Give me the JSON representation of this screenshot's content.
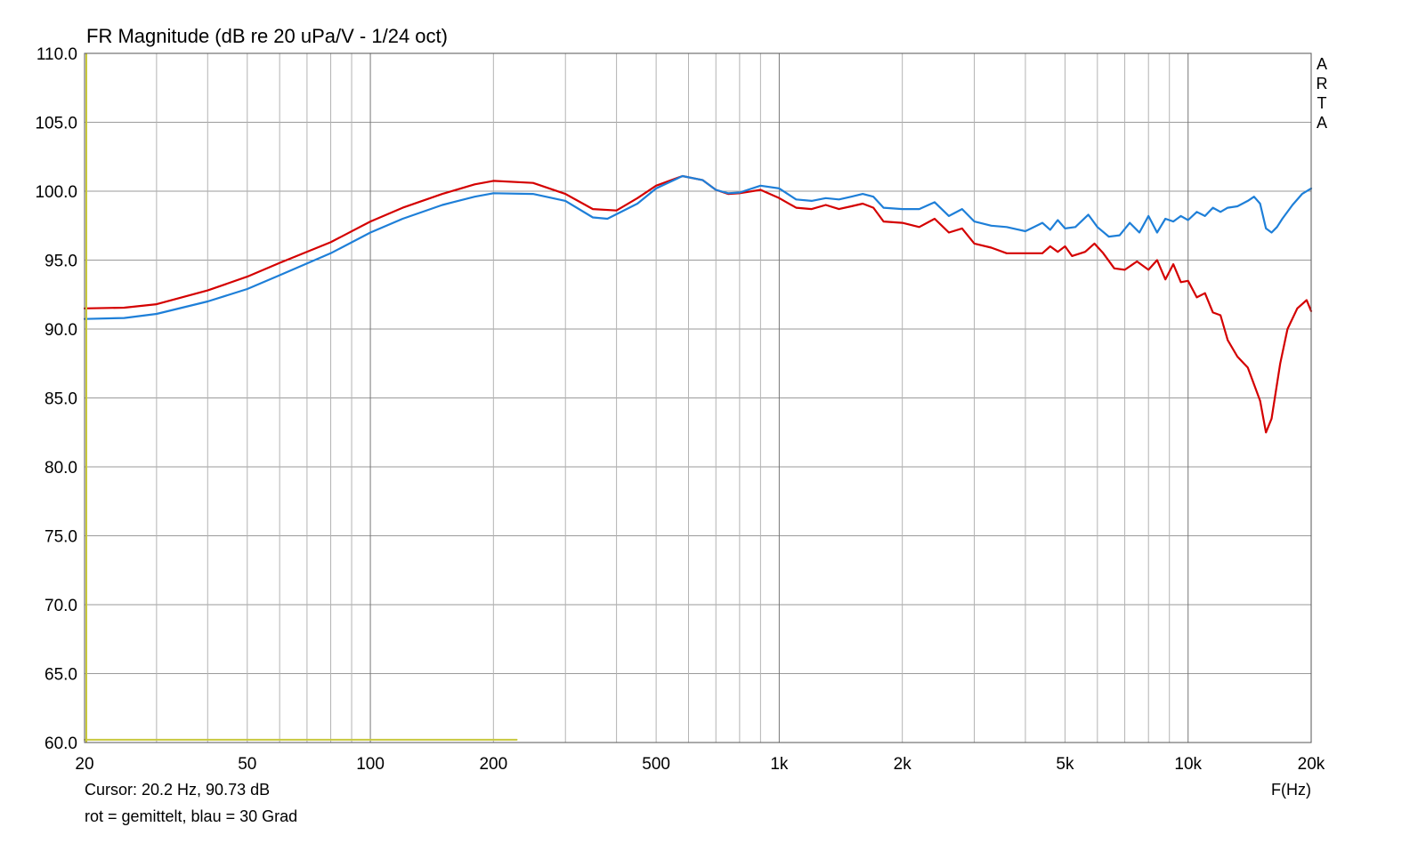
{
  "chart_data": {
    "type": "line",
    "title": "FR Magnitude (dB re 20 uPa/V - 1/24 oct)",
    "xlabel": "F(Hz)",
    "ylabel": "",
    "x_scale": "log",
    "xlim": [
      20,
      20000
    ],
    "ylim": [
      60,
      110
    ],
    "grid": true,
    "x_tick_labels": [
      "20",
      "50",
      "100",
      "200",
      "500",
      "1k",
      "2k",
      "5k",
      "10k",
      "20k"
    ],
    "x_tick_values": [
      20,
      50,
      100,
      200,
      500,
      1000,
      2000,
      5000,
      10000,
      20000
    ],
    "y_tick_labels": [
      "110.0",
      "105.0",
      "100.0",
      "95.0",
      "90.0",
      "85.0",
      "80.0",
      "75.0",
      "70.0",
      "65.0",
      "60.0"
    ],
    "y_tick_values": [
      110,
      105,
      100,
      95,
      90,
      85,
      80,
      75,
      70,
      65,
      60
    ],
    "watermark": [
      "A",
      "R",
      "T",
      "A"
    ],
    "cursor_text": "Cursor: 20.2 Hz, 90.73 dB",
    "legend_text": "rot = gemittelt, blau = 30 Grad",
    "series": [
      {
        "color": "#d40000",
        "points": [
          [
            20,
            91.5
          ],
          [
            25,
            91.55
          ],
          [
            30,
            91.8
          ],
          [
            40,
            92.8
          ],
          [
            50,
            93.8
          ],
          [
            60,
            94.8
          ],
          [
            80,
            96.3
          ],
          [
            100,
            97.8
          ],
          [
            120,
            98.8
          ],
          [
            150,
            99.8
          ],
          [
            180,
            100.5
          ],
          [
            200,
            100.75
          ],
          [
            250,
            100.6
          ],
          [
            300,
            99.8
          ],
          [
            350,
            98.7
          ],
          [
            400,
            98.6
          ],
          [
            450,
            99.5
          ],
          [
            500,
            100.4
          ],
          [
            580,
            101.1
          ],
          [
            650,
            100.8
          ],
          [
            700,
            100.1
          ],
          [
            750,
            99.8
          ],
          [
            800,
            99.85
          ],
          [
            900,
            100.1
          ],
          [
            1000,
            99.5
          ],
          [
            1100,
            98.8
          ],
          [
            1200,
            98.7
          ],
          [
            1300,
            99.0
          ],
          [
            1400,
            98.7
          ],
          [
            1500,
            98.9
          ],
          [
            1600,
            99.1
          ],
          [
            1700,
            98.8
          ],
          [
            1800,
            97.8
          ],
          [
            2000,
            97.7
          ],
          [
            2200,
            97.4
          ],
          [
            2400,
            98.0
          ],
          [
            2600,
            97.0
          ],
          [
            2800,
            97.3
          ],
          [
            3000,
            96.2
          ],
          [
            3300,
            95.9
          ],
          [
            3600,
            95.5
          ],
          [
            4000,
            95.5
          ],
          [
            4400,
            95.5
          ],
          [
            4600,
            96.0
          ],
          [
            4800,
            95.6
          ],
          [
            5000,
            96.0
          ],
          [
            5200,
            95.3
          ],
          [
            5600,
            95.6
          ],
          [
            5900,
            96.2
          ],
          [
            6200,
            95.5
          ],
          [
            6600,
            94.4
          ],
          [
            7000,
            94.3
          ],
          [
            7500,
            94.9
          ],
          [
            8000,
            94.3
          ],
          [
            8400,
            95.0
          ],
          [
            8800,
            93.6
          ],
          [
            9200,
            94.7
          ],
          [
            9600,
            93.4
          ],
          [
            10000,
            93.5
          ],
          [
            10500,
            92.3
          ],
          [
            11000,
            92.6
          ],
          [
            11500,
            91.2
          ],
          [
            12000,
            91.0
          ],
          [
            12500,
            89.2
          ],
          [
            13200,
            88.0
          ],
          [
            14000,
            87.2
          ],
          [
            15000,
            84.8
          ],
          [
            15500,
            82.5
          ],
          [
            16000,
            83.5
          ],
          [
            16800,
            87.5
          ],
          [
            17500,
            90.0
          ],
          [
            18500,
            91.5
          ],
          [
            19500,
            92.1
          ],
          [
            20000,
            91.3
          ]
        ]
      },
      {
        "color": "#1e7fd8",
        "points": [
          [
            20,
            90.73
          ],
          [
            25,
            90.8
          ],
          [
            30,
            91.1
          ],
          [
            40,
            92.0
          ],
          [
            50,
            92.9
          ],
          [
            60,
            93.9
          ],
          [
            80,
            95.5
          ],
          [
            100,
            97.0
          ],
          [
            120,
            98.0
          ],
          [
            150,
            99.0
          ],
          [
            180,
            99.6
          ],
          [
            200,
            99.85
          ],
          [
            250,
            99.8
          ],
          [
            300,
            99.3
          ],
          [
            350,
            98.1
          ],
          [
            380,
            98.0
          ],
          [
            450,
            99.1
          ],
          [
            500,
            100.2
          ],
          [
            580,
            101.1
          ],
          [
            650,
            100.8
          ],
          [
            700,
            100.1
          ],
          [
            750,
            99.85
          ],
          [
            800,
            99.9
          ],
          [
            900,
            100.4
          ],
          [
            1000,
            100.2
          ],
          [
            1100,
            99.4
          ],
          [
            1200,
            99.3
          ],
          [
            1300,
            99.5
          ],
          [
            1400,
            99.4
          ],
          [
            1500,
            99.6
          ],
          [
            1600,
            99.8
          ],
          [
            1700,
            99.6
          ],
          [
            1800,
            98.8
          ],
          [
            2000,
            98.7
          ],
          [
            2200,
            98.7
          ],
          [
            2400,
            99.2
          ],
          [
            2600,
            98.2
          ],
          [
            2800,
            98.7
          ],
          [
            3000,
            97.8
          ],
          [
            3300,
            97.5
          ],
          [
            3600,
            97.4
          ],
          [
            4000,
            97.1
          ],
          [
            4200,
            97.4
          ],
          [
            4400,
            97.7
          ],
          [
            4600,
            97.2
          ],
          [
            4800,
            97.9
          ],
          [
            5000,
            97.3
          ],
          [
            5300,
            97.4
          ],
          [
            5700,
            98.3
          ],
          [
            6000,
            97.4
          ],
          [
            6400,
            96.7
          ],
          [
            6800,
            96.8
          ],
          [
            7200,
            97.7
          ],
          [
            7600,
            97.0
          ],
          [
            8000,
            98.2
          ],
          [
            8400,
            97.0
          ],
          [
            8800,
            98.0
          ],
          [
            9200,
            97.8
          ],
          [
            9600,
            98.2
          ],
          [
            10000,
            97.9
          ],
          [
            10500,
            98.5
          ],
          [
            11000,
            98.2
          ],
          [
            11500,
            98.8
          ],
          [
            12000,
            98.5
          ],
          [
            12500,
            98.8
          ],
          [
            13200,
            98.9
          ],
          [
            14000,
            99.3
          ],
          [
            14500,
            99.6
          ],
          [
            15000,
            99.1
          ],
          [
            15500,
            97.3
          ],
          [
            16000,
            97.0
          ],
          [
            16500,
            97.4
          ],
          [
            17000,
            98.0
          ],
          [
            18000,
            99.0
          ],
          [
            19000,
            99.8
          ],
          [
            20000,
            100.2
          ]
        ]
      },
      {
        "color": "#c8c83c",
        "points": [
          [
            20,
            60.2
          ],
          [
            228,
            60.2
          ]
        ]
      }
    ]
  }
}
